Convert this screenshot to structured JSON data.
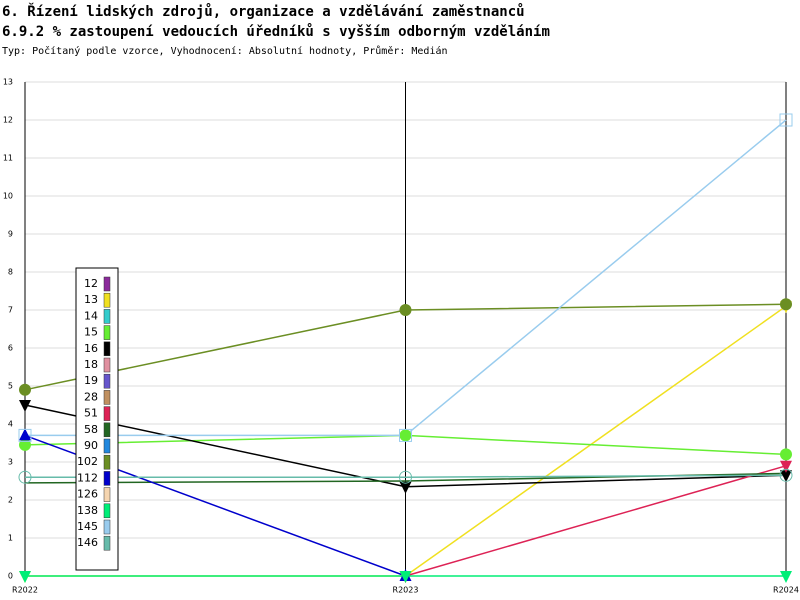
{
  "chart_data": {
    "type": "line",
    "title": "6. Řízení lidských zdrojů, organizace a vzdělávání zaměstnanců",
    "subtitle": "6.9.2 % zastoupení vedoucích úředníků s vyšším odborným vzděláním",
    "note": "Typ: Počítaný podle vzorce, Vyhodnocení: Absolutní hodnoty, Průměr: Medián",
    "categories": [
      "R2022",
      "R2023",
      "R2024"
    ],
    "ylim": [
      0,
      13
    ],
    "yticks": [
      0,
      1,
      2,
      3,
      4,
      5,
      6,
      7,
      8,
      9,
      10,
      11,
      12,
      13
    ],
    "grid": true,
    "series": [
      {
        "name": "12",
        "color": "#8b2a9b",
        "values": [
          null,
          null,
          null
        ]
      },
      {
        "name": "13",
        "color": "#f0e020",
        "marker": "triangle-down",
        "values": [
          0,
          0,
          7.1
        ]
      },
      {
        "name": "14",
        "color": "#33cccc",
        "values": [
          null,
          null,
          null
        ]
      },
      {
        "name": "15",
        "color": "#66ee33",
        "marker": "circle",
        "values": [
          3.45,
          3.7,
          3.2
        ]
      },
      {
        "name": "16",
        "color": "#000000",
        "marker": "triangle-down",
        "values": [
          4.5,
          2.35,
          2.65
        ]
      },
      {
        "name": "18",
        "color": "#e090a0",
        "values": [
          null,
          null,
          null
        ]
      },
      {
        "name": "19",
        "color": "#6655cc",
        "values": [
          null,
          null,
          null
        ]
      },
      {
        "name": "28",
        "color": "#c09060",
        "values": [
          null,
          null,
          null
        ]
      },
      {
        "name": "51",
        "color": "#dd2255",
        "marker": "triangle-down",
        "values": [
          null,
          0,
          2.9
        ]
      },
      {
        "name": "58",
        "color": "#226622",
        "values": [
          2.45,
          2.5,
          2.7
        ]
      },
      {
        "name": "90",
        "color": "#2288dd",
        "values": [
          null,
          null,
          null
        ]
      },
      {
        "name": "102",
        "color": "#6b8e23",
        "marker": "circle",
        "values": [
          4.9,
          7.0,
          7.15
        ]
      },
      {
        "name": "112",
        "color": "#0000cc",
        "marker": "triangle-up",
        "values": [
          3.7,
          0,
          null
        ]
      },
      {
        "name": "126",
        "color": "#f5d5b0",
        "values": [
          null,
          null,
          null
        ]
      },
      {
        "name": "138",
        "color": "#00ee77",
        "marker": "triangle-down",
        "values": [
          0,
          0,
          0
        ]
      },
      {
        "name": "145",
        "color": "#99ccee",
        "marker": "open-square",
        "values": [
          3.7,
          3.7,
          12
        ]
      },
      {
        "name": "146",
        "color": "#66bbaa",
        "marker": "open-circle",
        "values": [
          2.6,
          2.6,
          2.65
        ]
      }
    ]
  }
}
